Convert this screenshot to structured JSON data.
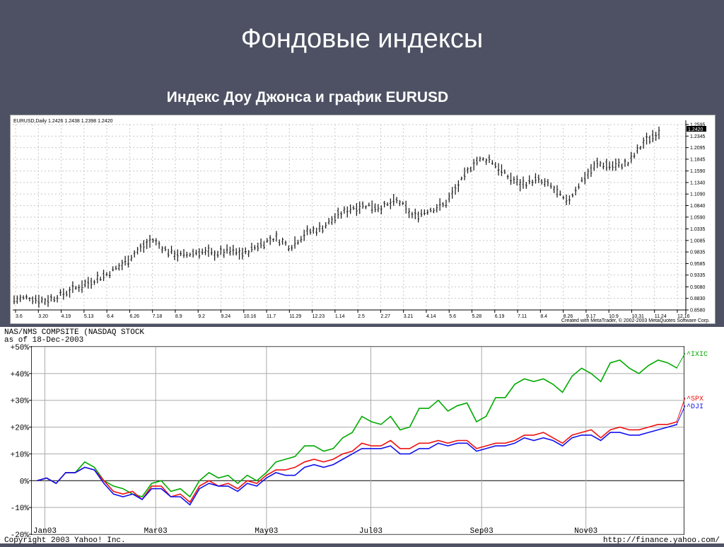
{
  "slide": {
    "title": "Фондовые индексы",
    "subtitle": "Индекс Доу Джонса и график EURUSD"
  },
  "chart_data": [
    {
      "type": "bar",
      "title": "EURUSD,Daily  1.2426 1.2438 1.2398 1.2420",
      "footer": "Created with MetaTrader, © 2002-2003 MetaQuotes Software Corp.",
      "current_price_label": "1.2420",
      "y_ticks": [
        1.2595,
        1.2345,
        1.2095,
        1.1845,
        1.159,
        1.134,
        1.109,
        1.084,
        1.059,
        1.0335,
        1.0085,
        0.9835,
        0.9585,
        0.9335,
        0.908,
        0.883,
        0.858
      ],
      "y_tick_labels": [
        "1.2595",
        "1.2345",
        "1.2095",
        "1.1845",
        "1.1590",
        "1.1340",
        "1.1090",
        "1.0840",
        "1.0590",
        "1.0335",
        "1.0085",
        "0.9835",
        "0.9585",
        "0.9335",
        "0.9080",
        "0.8830",
        "0.8580"
      ],
      "ylim": [
        0.858,
        1.2595
      ],
      "x_tick_labels": [
        "3.6",
        "3.20",
        "4.19",
        "5.13",
        "6.4",
        "6.26",
        "7.18",
        "8.9",
        "9.2",
        "9.24",
        "10.16",
        "11.7",
        "11.29",
        "12.23",
        "1.14",
        "2.5",
        "2.27",
        "3.21",
        "4.14",
        "5.6",
        "5.28",
        "6.19",
        "7.11",
        "8.4",
        "8.26",
        "9.17",
        "10.9",
        "10.31",
        "11.24",
        "12.16"
      ],
      "series": [
        {
          "close_path": [
            0.88,
            0.885,
            0.878,
            0.89,
            0.905,
            0.92,
            0.935,
            0.955,
            0.985,
            1.01,
            0.985,
            0.975,
            0.985,
            0.98,
            0.985,
            0.98,
            1.0,
            1.015,
            0.995,
            1.025,
            1.035,
            1.06,
            1.08,
            1.085,
            1.08,
            1.095,
            1.06,
            1.075,
            1.085,
            1.13,
            1.18,
            1.185,
            1.15,
            1.13,
            1.14,
            1.125,
            1.09,
            1.14,
            1.175,
            1.17,
            1.175,
            1.22,
            1.245
          ],
          "bar_count": 210
        }
      ]
    },
    {
      "type": "line",
      "title": "NAS/NMS COMPSITE (NASDAQ STOCK",
      "subtitle": "as of 18-Dec-2003",
      "footer_left": "Copyright 2003 Yahoo! Inc.",
      "footer_right": "http://finance.yahoo.com/",
      "ylim": [
        -20,
        50
      ],
      "y_ticks": [
        -20,
        -10,
        0,
        10,
        20,
        30,
        40,
        50
      ],
      "y_tick_labels": [
        "-20%",
        "-10%",
        "0%",
        "+10%",
        "+20%",
        "+30%",
        "+40%",
        "+50%"
      ],
      "x_tick_labels": [
        "Jan03",
        "Mar03",
        "May03",
        "Jul03",
        "Sep03",
        "Nov03"
      ],
      "xlim": [
        0,
        50
      ],
      "x_tick_positions": [
        1,
        9.5,
        18,
        26,
        34.5,
        42.5
      ],
      "series": [
        {
          "name": "^IXIC",
          "color": "#00aa00",
          "values": [
            0,
            1,
            -1,
            3,
            3,
            7,
            5,
            0,
            -2,
            -3,
            -5,
            -6,
            -1,
            0,
            -4,
            -3,
            -6,
            0,
            3,
            1,
            2,
            -1,
            2,
            0,
            3,
            7,
            8,
            9,
            13,
            13,
            11,
            12,
            16,
            18,
            24,
            22,
            21,
            24,
            19,
            20,
            27,
            27,
            30,
            26,
            28,
            29,
            22,
            24,
            31,
            31,
            36,
            38,
            37,
            38,
            36,
            33,
            39,
            42,
            40,
            37,
            44,
            45,
            42,
            40,
            43,
            45,
            44,
            42
          ]
        },
        {
          "name": "^SPX",
          "color": "#ee1111",
          "values": [
            0,
            1,
            -1,
            3,
            3,
            5,
            4,
            0,
            -4,
            -5,
            -4,
            -7,
            -2,
            -2,
            -6,
            -5,
            -8,
            -2,
            0,
            -2,
            -1,
            -3,
            0,
            -1,
            2,
            4,
            4,
            5,
            7,
            8,
            7,
            8,
            10,
            11,
            14,
            13,
            13,
            15,
            12,
            12,
            14,
            14,
            15,
            14,
            15,
            15,
            12,
            13,
            14,
            14,
            15,
            17,
            17,
            18,
            16,
            14,
            17,
            18,
            19,
            16,
            19,
            20,
            19,
            19,
            20,
            21,
            21,
            22
          ]
        },
        {
          "name": "^DJI",
          "color": "#1111ee",
          "values": [
            0,
            1,
            -1,
            3,
            3,
            5,
            4,
            -1,
            -5,
            -6,
            -5,
            -7,
            -3,
            -3,
            -6,
            -6,
            -9,
            -3,
            -1,
            -2,
            -2,
            -4,
            -1,
            -2,
            1,
            3,
            2,
            2,
            5,
            6,
            5,
            6,
            8,
            10,
            12,
            12,
            12,
            13,
            10,
            10,
            12,
            12,
            14,
            13,
            14,
            14,
            11,
            12,
            13,
            13,
            14,
            16,
            15,
            16,
            15,
            13,
            16,
            17,
            17,
            15,
            18,
            18,
            17,
            17,
            18,
            19,
            20,
            21
          ]
        }
      ]
    }
  ]
}
